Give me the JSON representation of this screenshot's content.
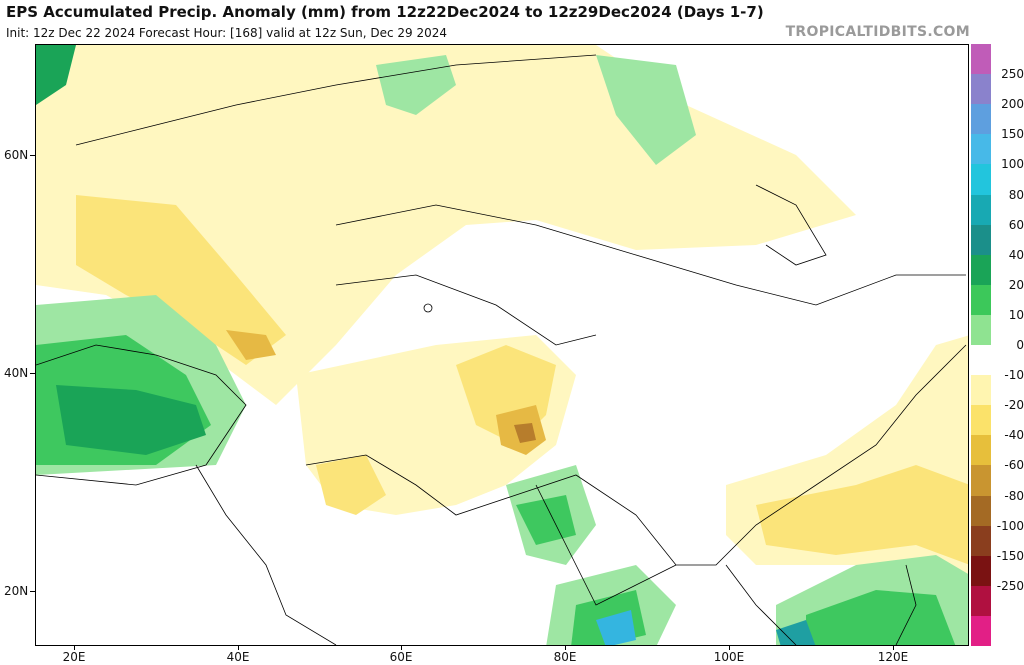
{
  "header": {
    "title": "EPS Accumulated Precip. Anomaly (mm) from 12z22Dec2024 to 12z29Dec2024 (Days 1-7)",
    "subtitle": "Init: 12z Dec 22 2024    Forecast Hour: [168]    valid at 12z Sun, Dec 29 2024",
    "brand": "TROPICALTIDBITS.COM"
  },
  "axes": {
    "lat_labels": [
      "60N",
      "40N",
      "20N"
    ],
    "lon_labels": [
      "20E",
      "40E",
      "60E",
      "80E",
      "100E",
      "120E"
    ]
  },
  "colorbar": {
    "labels": [
      "250",
      "200",
      "150",
      "100",
      "80",
      "60",
      "40",
      "20",
      "10",
      "0",
      "-10",
      "-20",
      "-40",
      "-60",
      "-80",
      "-100",
      "-150",
      "-250"
    ],
    "colors": [
      "#c05cb8",
      "#8a82cc",
      "#5e9fdf",
      "#47b9e8",
      "#22c5dd",
      "#18a9b3",
      "#1b8f8a",
      "#1aa457",
      "#3cc85a",
      "#8fe391",
      "#ffffff",
      "#fff5b0",
      "#fbe26a",
      "#e7bf3b",
      "#c99530",
      "#a46a24",
      "#8a3e1e",
      "#7a1212",
      "#b01040",
      "#e21f86"
    ]
  },
  "map_colors": {
    "dry_light": "#fff7c0",
    "dry_mid": "#fbe47a",
    "dry_strong": "#e6b944",
    "dry_extreme": "#b77d2c",
    "wet_light": "#9ee6a3",
    "wet_mid": "#3ec85f",
    "wet_strong": "#1aa457",
    "wet_deep": "#1f9fa2",
    "wet_extreme": "#34b5e0"
  }
}
